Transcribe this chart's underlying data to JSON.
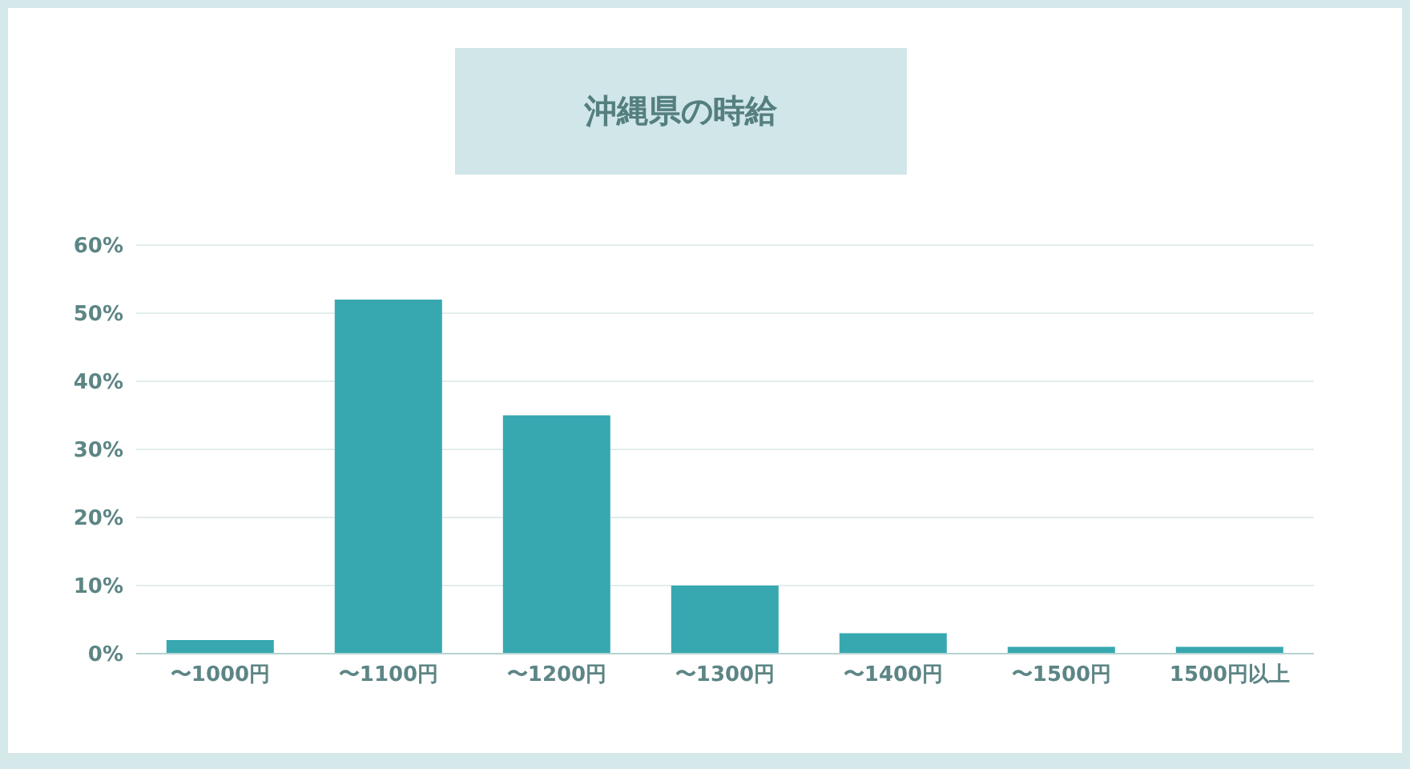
{
  "chart_data": {
    "type": "bar",
    "title": "沖縄県の時給",
    "categories": [
      "〜1000円",
      "〜1100円",
      "〜1200円",
      "〜1300円",
      "〜1400円",
      "〜1500円",
      "1500円以上"
    ],
    "values": [
      2,
      52,
      35,
      10,
      3,
      1,
      1
    ],
    "color": "#37a8b0",
    "ylim": [
      0,
      60
    ],
    "yticks": [
      {
        "value": 0,
        "label": "0%"
      },
      {
        "value": 10,
        "label": "10%"
      },
      {
        "value": 20,
        "label": "20%"
      },
      {
        "value": 30,
        "label": "30%"
      },
      {
        "value": 40,
        "label": "40%"
      },
      {
        "value": 50,
        "label": "50%"
      },
      {
        "value": 60,
        "label": "60%"
      }
    ],
    "grid": "y",
    "legend": false
  }
}
